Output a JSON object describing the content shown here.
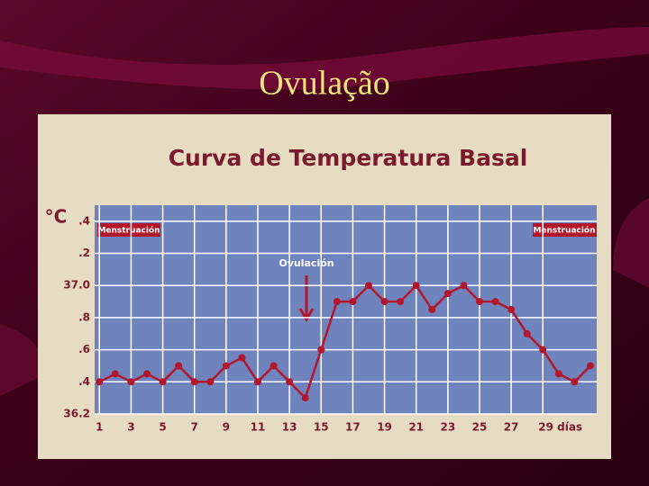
{
  "slide_title": "Ovulação",
  "chart_data": {
    "type": "line",
    "title": "Curva de Temperatura Basal",
    "ylabel": "°C",
    "x": [
      1,
      2,
      3,
      4,
      5,
      6,
      7,
      8,
      9,
      10,
      11,
      12,
      13,
      14,
      15,
      16,
      17,
      18,
      19,
      20,
      21,
      22,
      23,
      24,
      25,
      26,
      27,
      28,
      29,
      30,
      31,
      32
    ],
    "series": [
      {
        "name": "Temperatura",
        "color": "#b3172c",
        "values": [
          36.4,
          36.45,
          36.4,
          36.45,
          36.4,
          36.5,
          36.4,
          36.4,
          36.5,
          36.55,
          36.4,
          36.5,
          36.4,
          36.3,
          36.6,
          36.9,
          36.9,
          37.0,
          36.9,
          36.9,
          37.0,
          36.85,
          36.95,
          37.0,
          36.9,
          36.9,
          36.85,
          36.7,
          36.6,
          36.45,
          36.4,
          36.5
        ]
      }
    ],
    "xlim": [
      0.7,
      32.4
    ],
    "xticks": [
      1,
      3,
      5,
      7,
      9,
      11,
      13,
      15,
      17,
      19,
      21,
      23,
      25,
      27,
      {
        "value": 29,
        "label": "29 días"
      }
    ],
    "ylim": [
      36.2,
      37.5
    ],
    "yticks": [
      {
        "value": 37.4,
        "label": ".4"
      },
      {
        "value": 37.2,
        "label": ".2"
      },
      {
        "value": 37.0,
        "label": "37.0"
      },
      {
        "value": 36.8,
        "label": ".8"
      },
      {
        "value": 36.6,
        "label": ".6"
      },
      {
        "value": 36.4,
        "label": ".4"
      },
      36.2
    ],
    "grid": true,
    "annotations": [
      "Ovulación"
    ],
    "period_labels": [
      "Menstruación",
      "Menstruación"
    ]
  }
}
